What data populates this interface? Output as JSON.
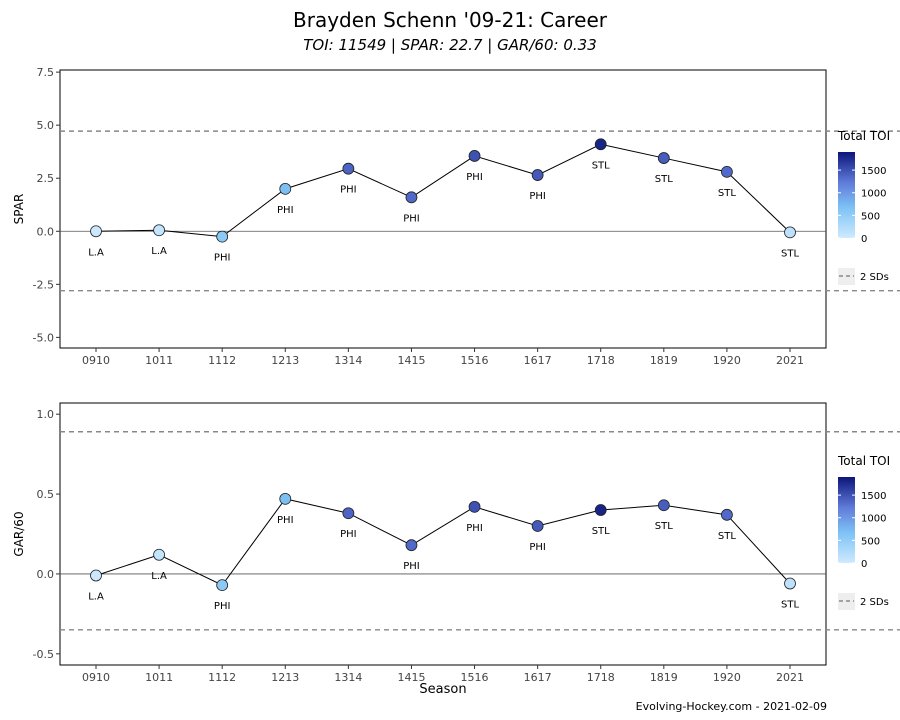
{
  "title": "Brayden Schenn '09-21: Career",
  "subtitle": "TOI: 11549 | SPAR: 22.7 | GAR/60: 0.33",
  "caption": "Evolving-Hockey.com - 2021-02-09",
  "chart_data": [
    {
      "type": "scatter",
      "ylabel": "SPAR",
      "xlabel": "",
      "categories": [
        "0910",
        "1011",
        "1112",
        "1213",
        "1314",
        "1415",
        "1516",
        "1617",
        "1718",
        "1819",
        "1920",
        "2021"
      ],
      "values": [
        0.0,
        0.05,
        -0.25,
        2.0,
        2.95,
        1.6,
        3.55,
        2.65,
        4.1,
        3.45,
        2.8,
        -0.05
      ],
      "teams": [
        "L.A",
        "L.A",
        "PHI",
        "PHI",
        "PHI",
        "PHI",
        "PHI",
        "PHI",
        "STL",
        "STL",
        "STL",
        "STL"
      ],
      "toi": [
        40,
        90,
        560,
        700,
        1380,
        1350,
        1500,
        1450,
        1800,
        1420,
        1350,
        150
      ],
      "ylim": [
        -5.5,
        7.6
      ],
      "yticks": [
        -5.0,
        -2.5,
        0.0,
        2.5,
        5.0,
        7.5
      ],
      "ytick_labels": [
        "-5.0",
        "-2.5",
        "0.0",
        "2.5",
        "5.0",
        "7.5"
      ],
      "sd_lines": [
        4.72,
        -2.8
      ],
      "zero_line": 0.0,
      "legend": {
        "title": "Total TOI",
        "ticks": [
          "1500",
          "1000",
          "500",
          "0"
        ],
        "sd_label": "2 SDs",
        "position": "right"
      }
    },
    {
      "type": "scatter",
      "ylabel": "GAR/60",
      "xlabel": "Season",
      "categories": [
        "0910",
        "1011",
        "1112",
        "1213",
        "1314",
        "1415",
        "1516",
        "1617",
        "1718",
        "1819",
        "1920",
        "2021"
      ],
      "values": [
        -0.01,
        0.12,
        -0.07,
        0.47,
        0.38,
        0.18,
        0.42,
        0.3,
        0.4,
        0.43,
        0.37,
        -0.06
      ],
      "teams": [
        "L.A",
        "L.A",
        "PHI",
        "PHI",
        "PHI",
        "PHI",
        "PHI",
        "PHI",
        "STL",
        "STL",
        "STL",
        "STL"
      ],
      "toi": [
        40,
        90,
        560,
        700,
        1380,
        1350,
        1500,
        1450,
        1800,
        1420,
        1350,
        150
      ],
      "ylim": [
        -0.57,
        1.07
      ],
      "yticks": [
        -0.5,
        0.0,
        0.5,
        1.0
      ],
      "ytick_labels": [
        "-0.5",
        "0.0",
        "0.5",
        "1.0"
      ],
      "sd_lines": [
        0.89,
        -0.35
      ],
      "zero_line": 0.0,
      "legend": {
        "title": "Total TOI",
        "ticks": [
          "1500",
          "1000",
          "500",
          "0"
        ],
        "sd_label": "2 SDs",
        "position": "right"
      }
    }
  ]
}
